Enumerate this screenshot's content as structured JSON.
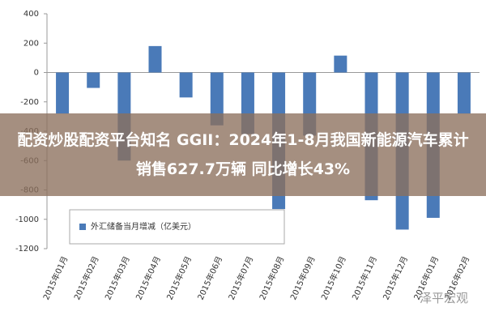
{
  "chart_data": {
    "type": "bar",
    "categories": [
      "2015年01月",
      "2015年02月",
      "2015年03月",
      "2015年04月",
      "2015年05月",
      "2015年06月",
      "2015年07月",
      "2015年08月",
      "2015年09月",
      "2015年10月",
      "2015年11月",
      "2015年12月",
      "2016年01月",
      "2016年02月"
    ],
    "series": [
      {
        "name": "外汇储备当月增减（亿美元）",
        "color": "#4a7ab8",
        "values": [
          -280,
          -105,
          -600,
          180,
          -170,
          -360,
          -420,
          -930,
          -430,
          115,
          -870,
          -1070,
          -990,
          -280
        ]
      }
    ],
    "ylim": [
      -1200,
      400
    ],
    "yticks": [
      -1200,
      -1000,
      -800,
      -600,
      -400,
      -200,
      0,
      200,
      400
    ],
    "legend": "lower left"
  },
  "overlay": {
    "text": "配资炒股配资平台知名 GGII：2024年1-8月我国新能源汽车累计销售627.7万辆 同比增长43%"
  },
  "watermark": "泽平宏观"
}
